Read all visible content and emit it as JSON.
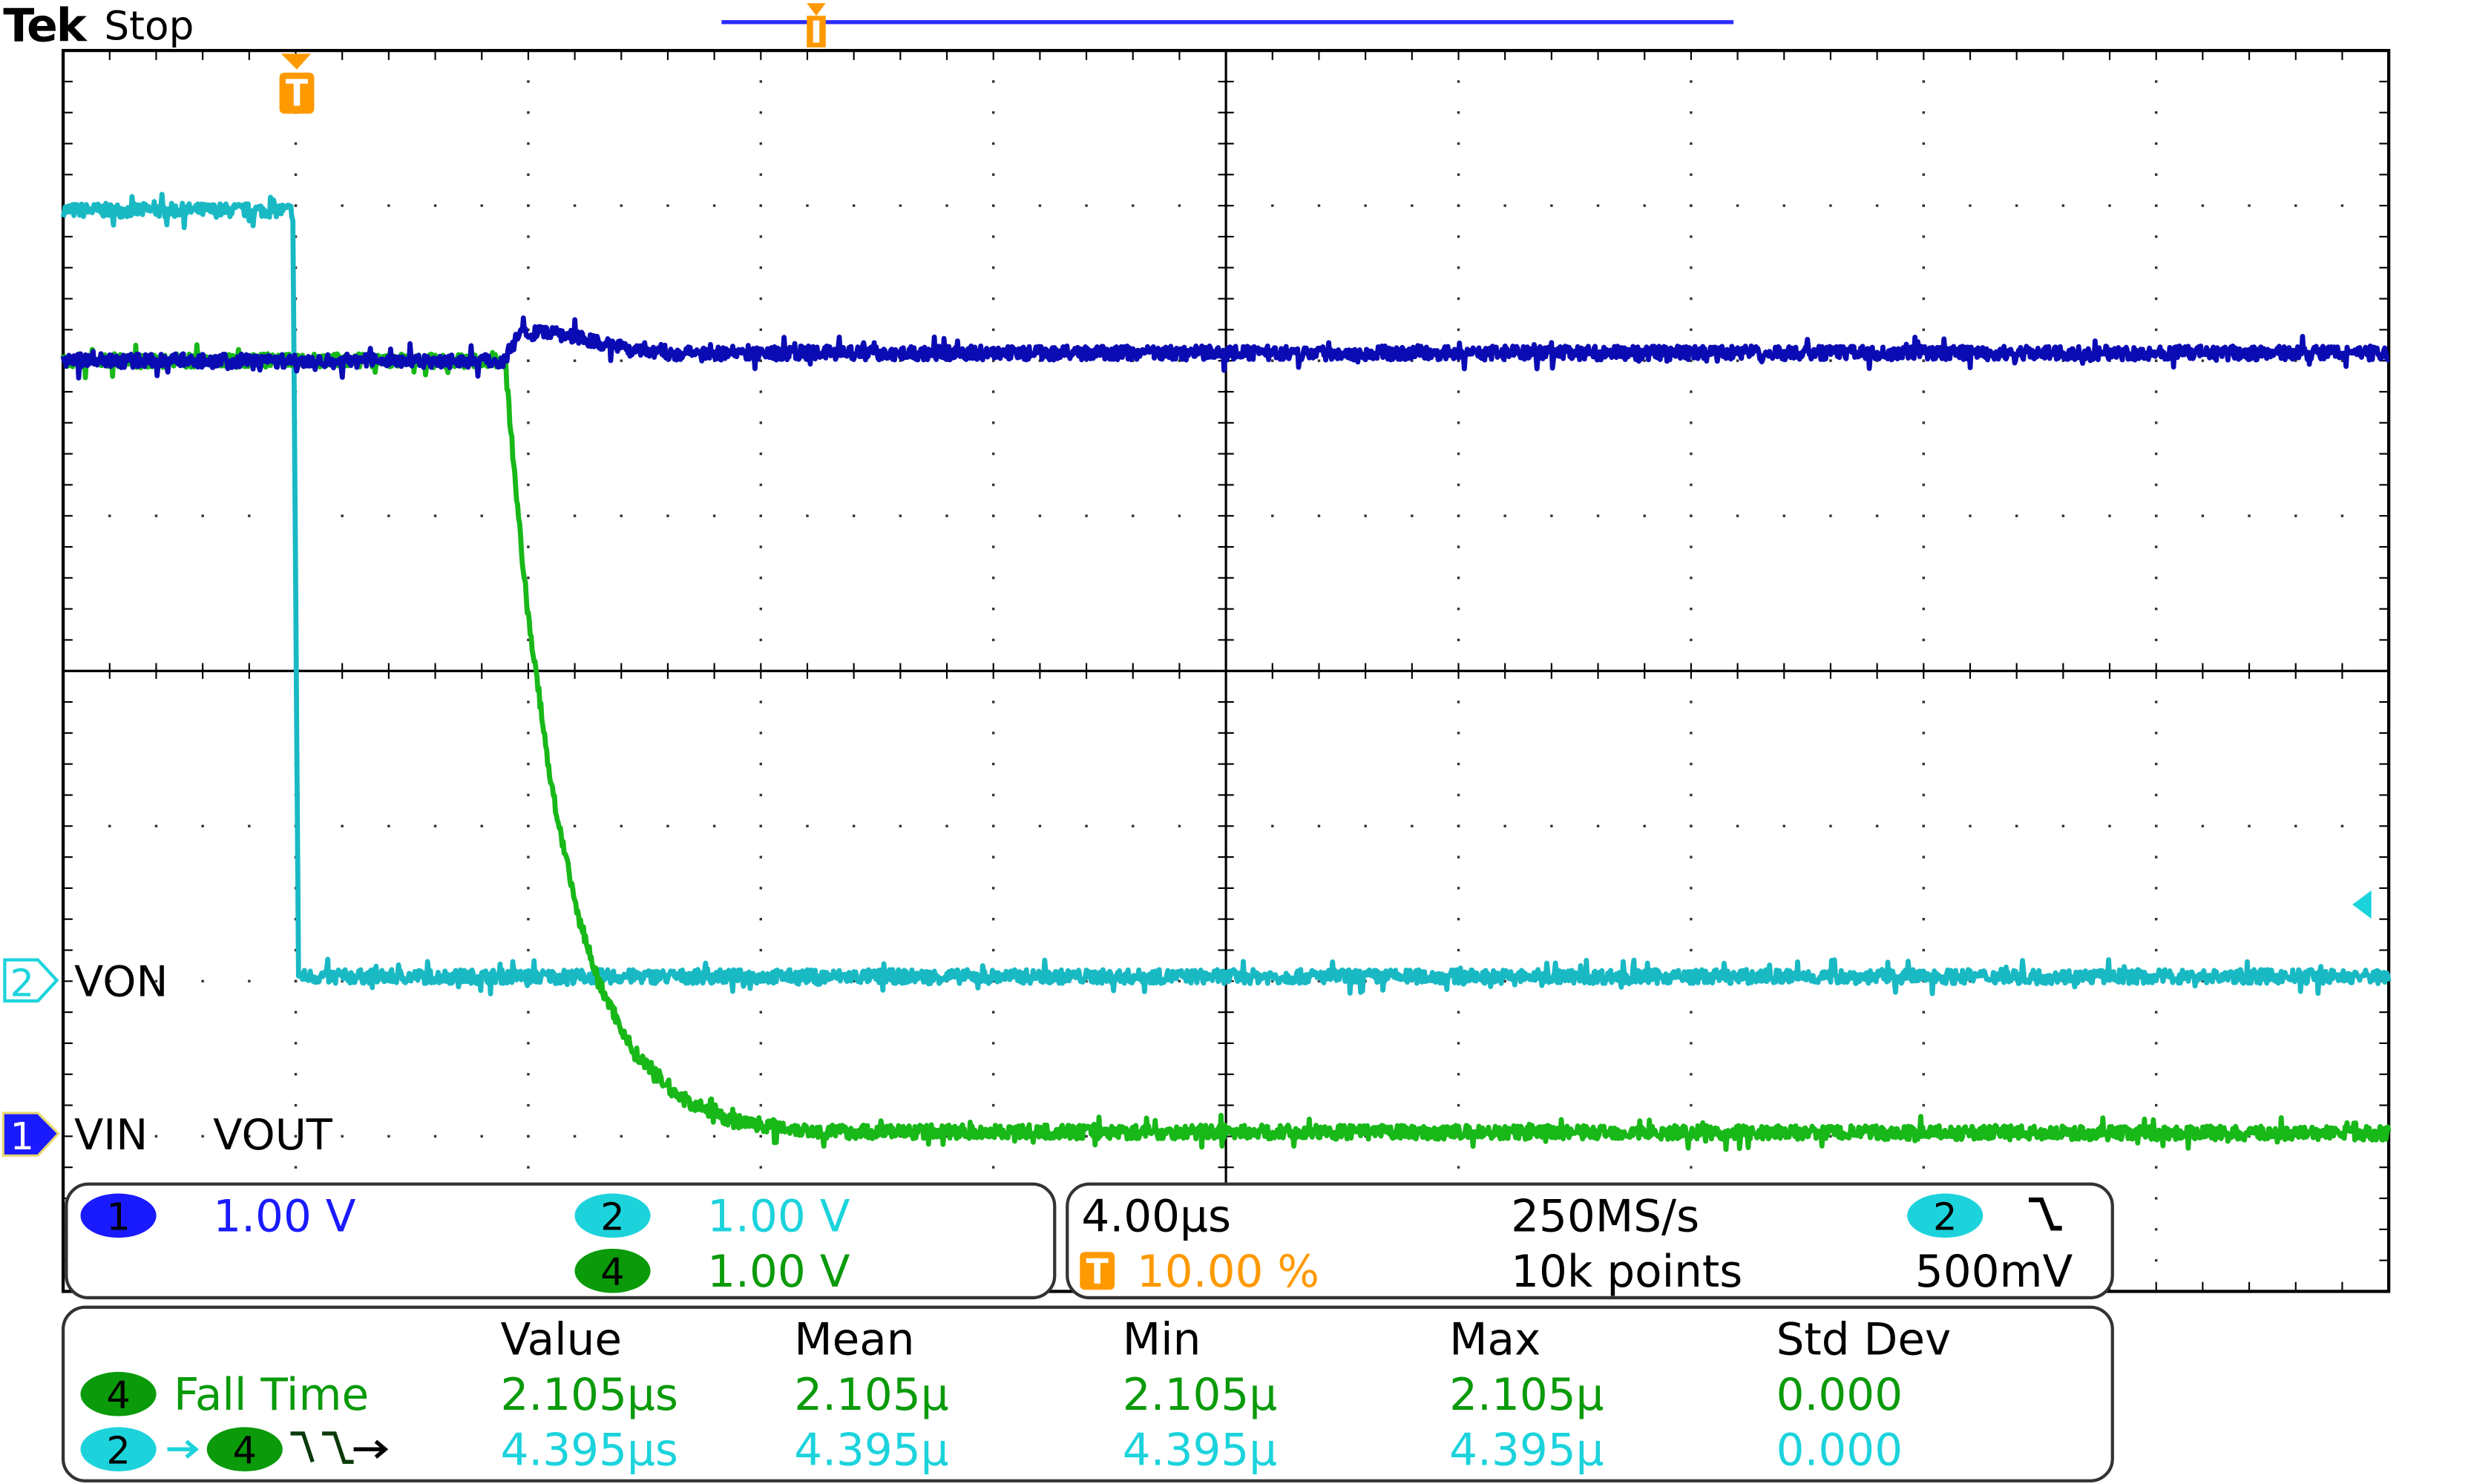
{
  "header": {
    "brand": "Tek",
    "status": "Stop"
  },
  "colors": {
    "ch1": "#1a1aff",
    "ch1_trace": "#0b0bb4",
    "ch2": "#1cd3dc",
    "ch2_trace": "#19b9c4",
    "ch4": "#0a9a0a",
    "ch4_trace": "#18b818",
    "trigger": "#ff9900"
  },
  "channel_labels": {
    "ch1_marker": "1",
    "ch2_marker": "2",
    "von": "VON",
    "vin": "VIN",
    "vout": "VOUT"
  },
  "vertical": {
    "ch1": {
      "badge": "1",
      "scale": "1.00 V"
    },
    "ch2": {
      "badge": "2",
      "scale": "1.00 V"
    },
    "ch4": {
      "badge": "4",
      "scale": "1.00 V"
    }
  },
  "horizontal": {
    "timebase": "4.00µs",
    "trigger_position": "10.00 %",
    "sample_rate": "250MS/s",
    "record_length": "10k points",
    "trigger_source": "2",
    "trigger_slope_icon": "falling-edge-icon",
    "trigger_level": "500mV"
  },
  "measurements": {
    "headers": [
      "Value",
      "Mean",
      "Min",
      "Max",
      "Std Dev"
    ],
    "rows": [
      {
        "source": "4",
        "name": "Fall Time",
        "values": [
          "2.105µs",
          "2.105µ",
          "2.105µ",
          "2.105µ",
          "0.000"
        ]
      },
      {
        "source": "2",
        "target": "4",
        "name_icon": "delay-falling-falling-icon",
        "values": [
          "4.395µs",
          "4.395µ",
          "4.395µ",
          "4.395µ",
          "0.000"
        ]
      }
    ]
  },
  "chart_data": {
    "type": "line",
    "x_unit": "µs",
    "y_unit": "V",
    "xlim": [
      -4,
      36
    ],
    "x_divisions": 10,
    "y_divisions": 8,
    "grid": true,
    "trigger_time": 0,
    "trigger_level_v": 0.5,
    "series": [
      {
        "name": "VIN",
        "channel": "1",
        "points": [
          [
            -4,
            5.0
          ],
          [
            3.6,
            5.0
          ],
          [
            3.8,
            5.18
          ],
          [
            4.6,
            5.17
          ],
          [
            5.4,
            5.1
          ],
          [
            6.5,
            5.05
          ],
          [
            36,
            5.05
          ]
        ]
      },
      {
        "name": "VON",
        "channel": "2",
        "points": [
          [
            -4,
            4.97
          ],
          [
            -0.05,
            4.97
          ],
          [
            0.05,
            0.03
          ],
          [
            36,
            0.03
          ]
        ]
      },
      {
        "name": "VOUT",
        "channel": "4",
        "points": [
          [
            -4,
            5.0
          ],
          [
            3.6,
            5.0
          ],
          [
            3.8,
            4.1
          ],
          [
            4.0,
            3.35
          ],
          [
            4.4,
            2.25
          ],
          [
            4.8,
            1.5
          ],
          [
            5.2,
            1.0
          ],
          [
            5.8,
            0.55
          ],
          [
            6.6,
            0.25
          ],
          [
            7.5,
            0.1
          ],
          [
            9.0,
            0.03
          ],
          [
            36,
            0.02
          ]
        ]
      }
    ]
  }
}
